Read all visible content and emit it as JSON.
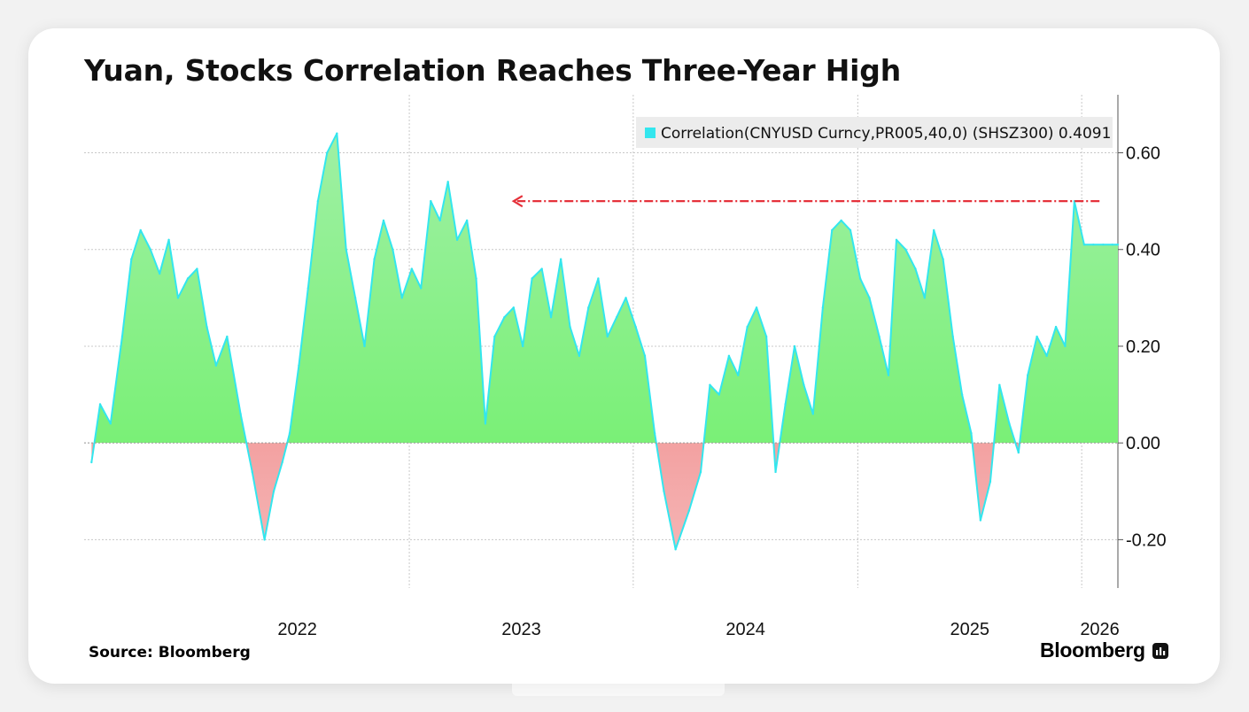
{
  "title": "Yuan, Stocks Correlation Reaches Three-Year High",
  "source": "Source: Bloomberg",
  "brand": "Bloomberg",
  "brand_icon": "bloomberg-terminal-icon",
  "colors": {
    "line": "#33e6ee",
    "fill_positive_top": "#9ff0a4",
    "fill_positive_bottom": "#6df067",
    "fill_negative_top": "#f06a6a",
    "fill_negative_bottom": "#f4b4b4",
    "arrow": "#e5313a",
    "grid": "#c8c8c8"
  },
  "chart_data": {
    "type": "area",
    "title": "Yuan, Stocks Correlation Reaches Three-Year High",
    "series": [
      {
        "name": "Correlation(CNYUSD Curncy,PR005,40,0) (SHSZ300) 0.4091",
        "x": [
          "2021-08-01",
          "2021-08-15",
          "2021-09-01",
          "2021-09-20",
          "2021-10-05",
          "2021-10-20",
          "2021-11-05",
          "2021-11-20",
          "2021-12-05",
          "2021-12-20",
          "2022-01-05",
          "2022-01-20",
          "2022-02-05",
          "2022-02-20",
          "2022-03-10",
          "2022-04-01",
          "2022-04-20",
          "2022-05-10",
          "2022-05-25",
          "2022-06-08",
          "2022-06-20",
          "2022-07-05",
          "2022-07-20",
          "2022-08-05",
          "2022-08-20",
          "2022-09-05",
          "2022-09-20",
          "2022-10-05",
          "2022-10-20",
          "2022-11-05",
          "2022-11-20",
          "2022-12-05",
          "2022-12-20",
          "2023-01-05",
          "2023-01-20",
          "2023-02-05",
          "2023-02-20",
          "2023-03-05",
          "2023-03-20",
          "2023-04-05",
          "2023-04-20",
          "2023-05-05",
          "2023-05-20",
          "2023-06-05",
          "2023-06-20",
          "2023-07-05",
          "2023-07-20",
          "2023-08-05",
          "2023-08-20",
          "2023-09-05",
          "2023-09-20",
          "2023-10-05",
          "2023-10-20",
          "2023-11-05",
          "2023-11-20",
          "2023-12-05",
          "2023-12-20",
          "2024-01-05",
          "2024-01-20",
          "2024-02-05",
          "2024-02-20",
          "2024-03-10",
          "2024-04-01",
          "2024-04-20",
          "2024-05-05",
          "2024-05-20",
          "2024-06-05",
          "2024-06-20",
          "2024-07-05",
          "2024-07-20",
          "2024-08-05",
          "2024-08-20",
          "2024-09-05",
          "2024-09-20",
          "2024-10-05",
          "2024-10-20",
          "2024-11-05",
          "2024-11-20",
          "2024-12-05",
          "2024-12-20",
          "2025-01-05",
          "2025-01-20",
          "2025-02-05",
          "2025-02-20",
          "2025-03-05",
          "2025-03-20",
          "2025-04-05",
          "2025-04-20",
          "2025-05-05",
          "2025-05-20",
          "2025-06-05",
          "2025-06-20",
          "2025-07-05",
          "2025-07-20",
          "2025-08-05",
          "2025-08-20",
          "2025-09-05",
          "2025-09-20",
          "2025-10-05",
          "2025-10-20",
          "2025-11-05",
          "2025-11-20",
          "2025-12-05",
          "2025-12-20",
          "2026-01-05",
          "2026-01-20",
          "2026-02-05",
          "2026-02-20",
          "2026-03-01"
        ],
        "y": [
          -0.04,
          0.08,
          0.04,
          0.22,
          0.38,
          0.44,
          0.4,
          0.35,
          0.42,
          0.3,
          0.34,
          0.36,
          0.24,
          0.16,
          0.22,
          0.06,
          -0.06,
          -0.2,
          -0.1,
          -0.04,
          0.02,
          0.16,
          0.32,
          0.5,
          0.6,
          0.64,
          0.4,
          0.3,
          0.2,
          0.38,
          0.46,
          0.4,
          0.3,
          0.36,
          0.32,
          0.5,
          0.46,
          0.54,
          0.42,
          0.46,
          0.34,
          0.04,
          0.22,
          0.26,
          0.28,
          0.2,
          0.34,
          0.36,
          0.26,
          0.38,
          0.24,
          0.18,
          0.28,
          0.34,
          0.22,
          0.26,
          0.3,
          0.24,
          0.18,
          0.02,
          -0.1,
          -0.22,
          -0.14,
          -0.06,
          0.12,
          0.1,
          0.18,
          0.14,
          0.24,
          0.28,
          0.22,
          -0.06,
          0.08,
          0.2,
          0.12,
          0.06,
          0.28,
          0.44,
          0.46,
          0.44,
          0.34,
          0.3,
          0.22,
          0.14,
          0.42,
          0.4,
          0.36,
          0.3,
          0.44,
          0.38,
          0.22,
          0.1,
          0.02,
          -0.16,
          -0.08,
          0.12,
          0.04,
          -0.02,
          0.14,
          0.22,
          0.18,
          0.24,
          0.2,
          0.5,
          0.41,
          0.41,
          0.41,
          0.41,
          0.41
        ]
      }
    ],
    "xlim": [
      "2021-07-20",
      "2026-03-01"
    ],
    "ylim": [
      -0.3,
      0.72
    ],
    "yticks": [
      -0.2,
      0.0,
      0.2,
      0.4,
      0.6
    ],
    "yticklabels": [
      "-0.20",
      "0.00",
      "0.20",
      "0.40",
      "0.60"
    ],
    "xticklabels": [
      "2022",
      "2023",
      "2024",
      "2025",
      "2026"
    ],
    "grid": true,
    "legend_position": "top-right",
    "annotation": {
      "type": "arrow",
      "from": "2026-01-30",
      "to": "2023-06-20",
      "y": 0.5
    }
  }
}
